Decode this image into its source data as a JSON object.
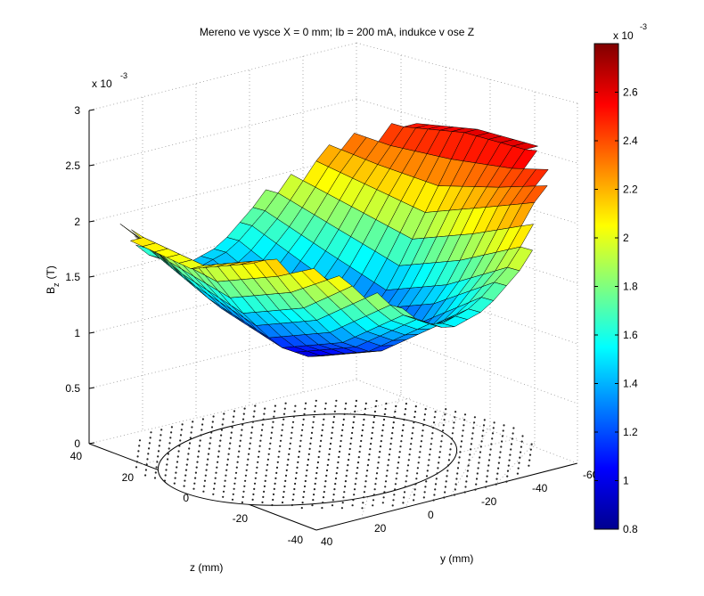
{
  "chart_data": {
    "type": "surface",
    "title": "Mereno ve vysce X = 0 mm; Ib = 200 mA, indukce v ose Z",
    "xlabel": "y (mm)",
    "ylabel": "z (mm)",
    "zlabel": "B",
    "zlabel_sub": "z",
    "zlabel_unit": "(T)",
    "z_multiplier": "x 10",
    "z_exponent": "-3",
    "y_ticks": [
      "-60",
      "-40",
      "-20",
      "0",
      "20",
      "40"
    ],
    "z_ticks": [
      "40",
      "20",
      "0",
      "-20",
      "-40"
    ],
    "bz_ticks": [
      "0",
      "0.5",
      "1",
      "1.5",
      "2",
      "2.5",
      "3"
    ],
    "bz_range": [
      0,
      3
    ],
    "colorbar": {
      "range": [
        0.8,
        2.8
      ],
      "ticks": [
        "0.8",
        "1",
        "1.2",
        "1.4",
        "1.6",
        "1.8",
        "2",
        "2.2",
        "2.4",
        "2.6"
      ],
      "multiplier": "x 10",
      "exponent": "-3",
      "colormap": "jet"
    },
    "surface_profile": {
      "center_min": 0.9,
      "edge_max": 2.7,
      "sample_rows": [
        {
          "z": 40,
          "bz": [
            2.3,
            2.0,
            1.6,
            1.4,
            1.5,
            1.8,
            2.2,
            2.5
          ]
        },
        {
          "z": 20,
          "bz": [
            2.1,
            1.7,
            1.3,
            1.1,
            1.2,
            1.6,
            2.1,
            2.5
          ]
        },
        {
          "z": 0,
          "bz": [
            2.0,
            1.5,
            1.1,
            0.9,
            1.0,
            1.4,
            2.0,
            2.6
          ]
        },
        {
          "z": -20,
          "bz": [
            2.2,
            1.7,
            1.3,
            1.1,
            1.2,
            1.6,
            2.2,
            2.6
          ]
        },
        {
          "z": -40,
          "bz": [
            2.4,
            2.1,
            1.7,
            1.5,
            1.6,
            1.9,
            2.4,
            2.7
          ]
        }
      ]
    },
    "grid": true
  }
}
